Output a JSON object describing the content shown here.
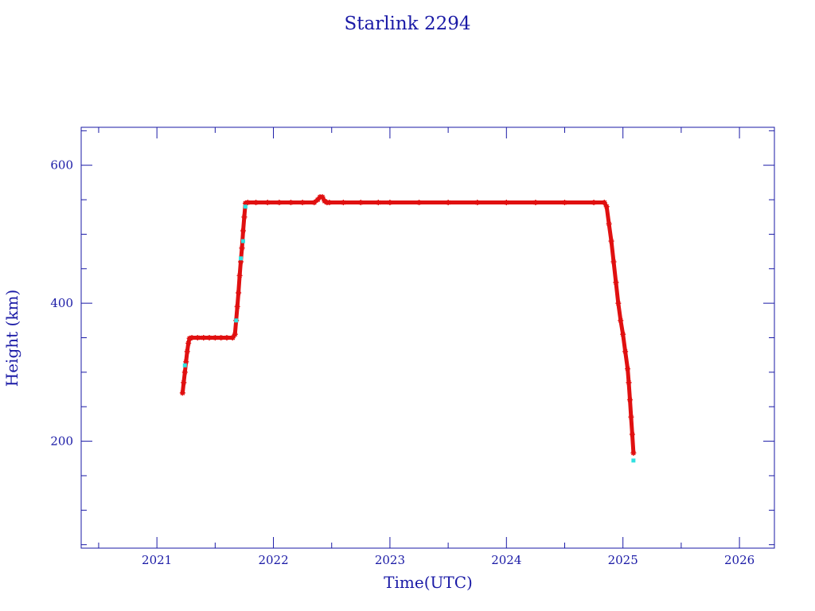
{
  "chart_data": {
    "type": "scatter",
    "title": "Starlink 2294",
    "xlabel": "Time(UTC)",
    "ylabel": "Height (km)",
    "xlim": [
      2020.35,
      2026.3
    ],
    "ylim": [
      45,
      655
    ],
    "x_ticks": [
      2021,
      2022,
      2023,
      2024,
      2025,
      2026
    ],
    "x_tick_labels": [
      "2021",
      "2022",
      "2023",
      "2024",
      "2025",
      "2026"
    ],
    "y_ticks": [
      200,
      400,
      600
    ],
    "y_tick_labels": [
      "200",
      "400",
      "600"
    ],
    "grid": false,
    "colors": {
      "axis": "#1a1aa6",
      "primary_series": "#e01010",
      "secondary_series": "#30e0e0"
    },
    "series": [
      {
        "marker": "asterisk",
        "color": "#e01010",
        "x": [
          2021.22,
          2021.23,
          2021.24,
          2021.25,
          2021.26,
          2021.27,
          2021.28,
          2021.3,
          2021.35,
          2021.4,
          2021.45,
          2021.5,
          2021.55,
          2021.6,
          2021.65,
          2021.67,
          2021.68,
          2021.69,
          2021.7,
          2021.71,
          2021.72,
          2021.73,
          2021.74,
          2021.75,
          2021.76,
          2021.78,
          2021.85,
          2021.95,
          2022.05,
          2022.15,
          2022.25,
          2022.35,
          2022.38,
          2022.4,
          2022.42,
          2022.44,
          2022.46,
          2022.48,
          2022.6,
          2022.75,
          2022.9,
          2023.0,
          2023.25,
          2023.5,
          2023.75,
          2024.0,
          2024.25,
          2024.5,
          2024.75,
          2024.84,
          2024.86,
          2024.88,
          2024.9,
          2024.92,
          2024.94,
          2024.96,
          2024.98,
          2025.0,
          2025.02,
          2025.04,
          2025.05,
          2025.06,
          2025.07,
          2025.08,
          2025.09
        ],
        "y": [
          270,
          285,
          300,
          315,
          330,
          342,
          349,
          350,
          350,
          350,
          350,
          350,
          350,
          350,
          350,
          355,
          375,
          395,
          415,
          440,
          460,
          480,
          505,
          525,
          545,
          546,
          546,
          546,
          546,
          546,
          546,
          546,
          550,
          554,
          554,
          548,
          546,
          546,
          546,
          546,
          546,
          546,
          546,
          546,
          546,
          546,
          546,
          546,
          546,
          546,
          540,
          515,
          490,
          460,
          430,
          400,
          375,
          355,
          330,
          305,
          285,
          260,
          235,
          210,
          183
        ]
      },
      {
        "marker": "dot",
        "color": "#30e0e0",
        "x": [
          2021.24,
          2021.68,
          2021.72,
          2021.74,
          2021.76,
          2025.09
        ],
        "y": [
          310,
          375,
          465,
          490,
          540,
          172
        ]
      }
    ]
  }
}
